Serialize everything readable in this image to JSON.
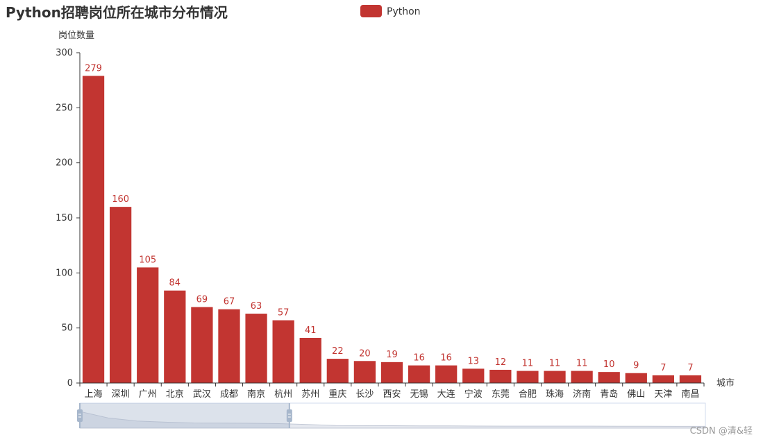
{
  "chart_data": {
    "type": "bar",
    "title": "Python招聘岗位所在城市分布情况",
    "xlabel": "城市",
    "ylabel": "岗位数量",
    "ylim": [
      0,
      300
    ],
    "yticks": [
      0,
      50,
      100,
      150,
      200,
      250,
      300
    ],
    "legend_position": "top-center",
    "grid": false,
    "categories": [
      "上海",
      "深圳",
      "广州",
      "北京",
      "武汉",
      "成都",
      "南京",
      "杭州",
      "苏州",
      "重庆",
      "长沙",
      "西安",
      "无锡",
      "大连",
      "宁波",
      "东莞",
      "合肥",
      "珠海",
      "济南",
      "青岛",
      "佛山",
      "天津",
      "南昌"
    ],
    "series": [
      {
        "name": "Python",
        "color": "#c23531",
        "values": [
          279,
          160,
          105,
          84,
          69,
          67,
          63,
          57,
          41,
          22,
          20,
          19,
          16,
          16,
          13,
          12,
          11,
          11,
          11,
          10,
          9,
          7,
          7
        ]
      }
    ],
    "datazoom": {
      "start_percent": 0,
      "end_percent": 33.5
    }
  },
  "watermark": "CSDN @清&轻"
}
